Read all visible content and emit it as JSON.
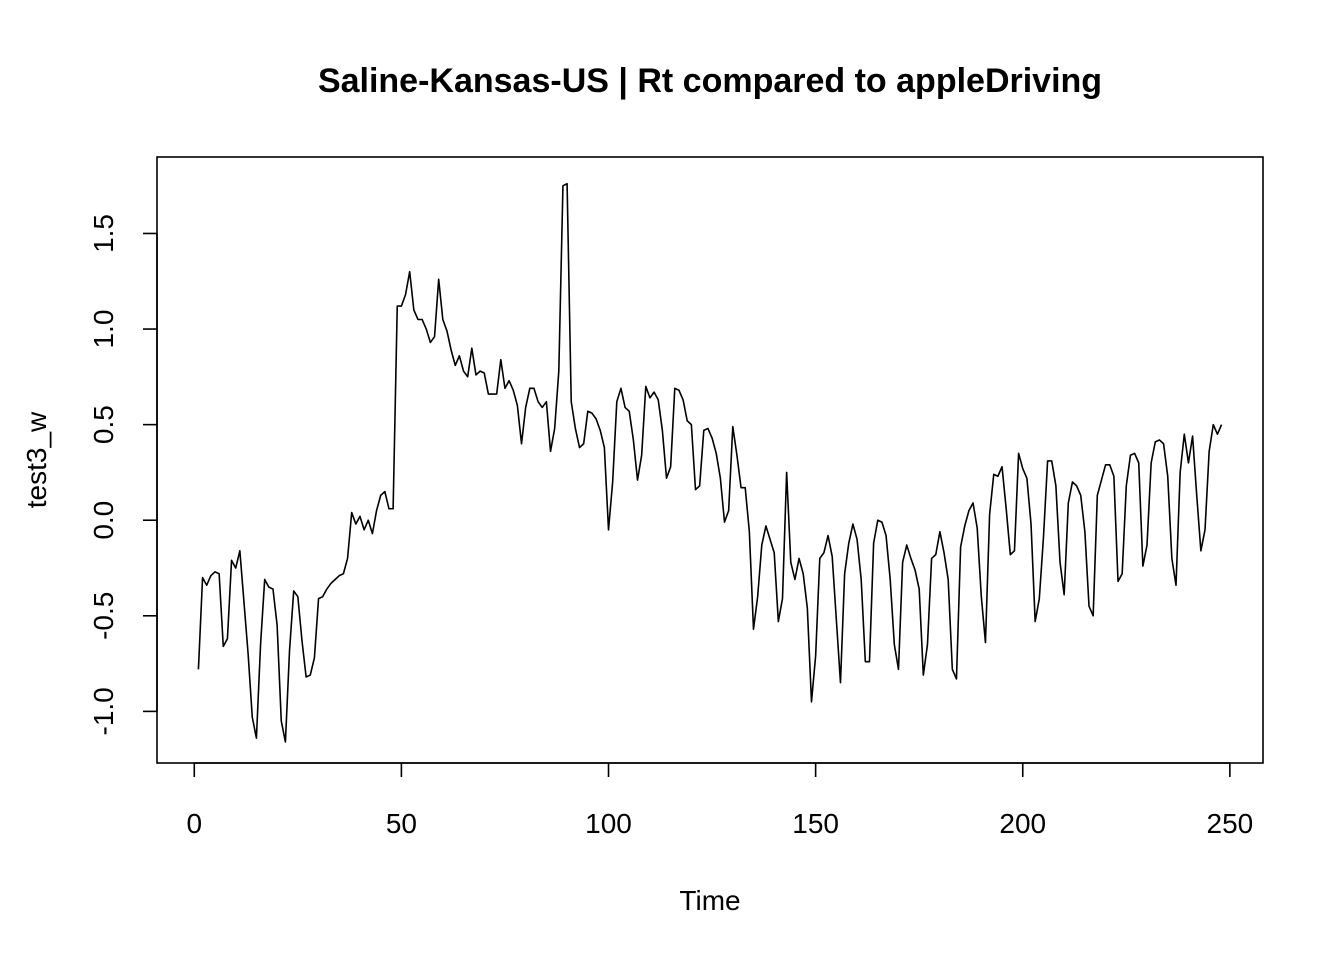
{
  "chart_data": {
    "type": "line",
    "title": "Saline-Kansas-US | Rt compared to appleDriving",
    "xlabel": "Time",
    "ylabel": "test3_w",
    "xlim": [
      -9,
      258
    ],
    "ylim": [
      -1.27,
      1.9
    ],
    "x_ticks": [
      0,
      50,
      100,
      150,
      200,
      250
    ],
    "x_tick_labels": [
      "0",
      "50",
      "100",
      "150",
      "200",
      "250"
    ],
    "y_ticks": [
      -1.0,
      -0.5,
      0.0,
      0.5,
      1.0,
      1.5
    ],
    "y_tick_labels": [
      "-1.0",
      "-0.5",
      "0.0",
      "0.5",
      "1.0",
      "1.5"
    ],
    "grid": false,
    "legend": "none",
    "line_color": "#000000",
    "series": [
      {
        "x": [
          1,
          2,
          3,
          4,
          5,
          6,
          7,
          8,
          9,
          10,
          11,
          12,
          13,
          14,
          15,
          16,
          17,
          18,
          19,
          20,
          21,
          22,
          23,
          24,
          25,
          26,
          27,
          28,
          29,
          30,
          31,
          32,
          33,
          34,
          35,
          36,
          37,
          38,
          39,
          40,
          41,
          42,
          43,
          44,
          45,
          46,
          47,
          48,
          49,
          50,
          51,
          52,
          53,
          54,
          55,
          56,
          57,
          58,
          59,
          60,
          61,
          62,
          63,
          64,
          65,
          66,
          67,
          68,
          69,
          70,
          71,
          72,
          73,
          74,
          75,
          76,
          77,
          78,
          79,
          80,
          81,
          82,
          83,
          84,
          85,
          86,
          87,
          88,
          89,
          90,
          91,
          92,
          93,
          94,
          95,
          96,
          97,
          98,
          99,
          100,
          101,
          102,
          103,
          104,
          105,
          106,
          107,
          108,
          109,
          110,
          111,
          112,
          113,
          114,
          115,
          116,
          117,
          118,
          119,
          120,
          121,
          122,
          123,
          124,
          125,
          126,
          127,
          128,
          129,
          130,
          131,
          132,
          133,
          134,
          135,
          136,
          137,
          138,
          139,
          140,
          141,
          142,
          143,
          144,
          145,
          146,
          147,
          148,
          149,
          150,
          151,
          152,
          153,
          154,
          155,
          156,
          157,
          158,
          159,
          160,
          161,
          162,
          163,
          164,
          165,
          166,
          167,
          168,
          169,
          170,
          171,
          172,
          173,
          174,
          175,
          176,
          177,
          178,
          179,
          180,
          181,
          182,
          183,
          184,
          185,
          186,
          187,
          188,
          189,
          190,
          191,
          192,
          193,
          194,
          195,
          196,
          197,
          198,
          199,
          200,
          201,
          202,
          203,
          204,
          205,
          206,
          207,
          208,
          209,
          210,
          211,
          212,
          213,
          214,
          215,
          216,
          217,
          218,
          219,
          220,
          221,
          222,
          223,
          224,
          225,
          226,
          227,
          228,
          229,
          230,
          231,
          232,
          233,
          234,
          235,
          236,
          237,
          238,
          239,
          240,
          241,
          242,
          243,
          244,
          245,
          246,
          247,
          248
        ],
        "values": [
          -0.78,
          -0.3,
          -0.34,
          -0.29,
          -0.27,
          -0.28,
          -0.66,
          -0.62,
          -0.21,
          -0.25,
          -0.16,
          -0.43,
          -0.7,
          -1.03,
          -1.14,
          -0.65,
          -0.31,
          -0.35,
          -0.36,
          -0.55,
          -1.05,
          -1.16,
          -0.68,
          -0.37,
          -0.4,
          -0.63,
          -0.82,
          -0.81,
          -0.72,
          -0.41,
          -0.4,
          -0.36,
          -0.33,
          -0.31,
          -0.29,
          -0.28,
          -0.2,
          0.04,
          -0.02,
          0.02,
          -0.05,
          0.0,
          -0.07,
          0.05,
          0.13,
          0.15,
          0.06,
          0.06,
          1.12,
          1.12,
          1.18,
          1.3,
          1.1,
          1.05,
          1.05,
          1.0,
          0.93,
          0.96,
          1.26,
          1.05,
          0.99,
          0.89,
          0.81,
          0.86,
          0.78,
          0.75,
          0.9,
          0.76,
          0.78,
          0.77,
          0.66,
          0.66,
          0.66,
          0.84,
          0.69,
          0.73,
          0.68,
          0.6,
          0.4,
          0.59,
          0.69,
          0.69,
          0.62,
          0.59,
          0.62,
          0.36,
          0.48,
          0.78,
          1.75,
          1.76,
          0.62,
          0.48,
          0.38,
          0.4,
          0.57,
          0.56,
          0.53,
          0.47,
          0.38,
          -0.05,
          0.2,
          0.62,
          0.69,
          0.59,
          0.57,
          0.42,
          0.21,
          0.34,
          0.7,
          0.64,
          0.67,
          0.63,
          0.47,
          0.22,
          0.28,
          0.69,
          0.68,
          0.63,
          0.52,
          0.5,
          0.16,
          0.18,
          0.47,
          0.48,
          0.43,
          0.35,
          0.22,
          -0.01,
          0.05,
          0.49,
          0.34,
          0.17,
          0.17,
          -0.06,
          -0.57,
          -0.4,
          -0.13,
          -0.03,
          -0.1,
          -0.17,
          -0.53,
          -0.41,
          0.25,
          -0.22,
          -0.31,
          -0.2,
          -0.28,
          -0.46,
          -0.95,
          -0.71,
          -0.2,
          -0.17,
          -0.08,
          -0.19,
          -0.52,
          -0.85,
          -0.28,
          -0.12,
          -0.02,
          -0.1,
          -0.31,
          -0.74,
          -0.74,
          -0.12,
          0.0,
          -0.01,
          -0.08,
          -0.31,
          -0.65,
          -0.78,
          -0.22,
          -0.13,
          -0.2,
          -0.26,
          -0.36,
          -0.81,
          -0.65,
          -0.2,
          -0.18,
          -0.06,
          -0.17,
          -0.31,
          -0.78,
          -0.83,
          -0.14,
          -0.03,
          0.05,
          0.09,
          -0.04,
          -0.4,
          -0.64,
          0.03,
          0.24,
          0.23,
          0.28,
          0.06,
          -0.18,
          -0.16,
          0.35,
          0.27,
          0.22,
          -0.02,
          -0.53,
          -0.41,
          -0.09,
          0.31,
          0.31,
          0.18,
          -0.22,
          -0.39,
          0.09,
          0.2,
          0.18,
          0.13,
          -0.06,
          -0.45,
          -0.5,
          0.13,
          0.21,
          0.29,
          0.29,
          0.23,
          -0.32,
          -0.28,
          0.18,
          0.34,
          0.35,
          0.3,
          -0.24,
          -0.13,
          0.3,
          0.41,
          0.42,
          0.4,
          0.23,
          -0.2,
          -0.34,
          0.25,
          0.45,
          0.3,
          0.44,
          0.13,
          -0.16,
          -0.05,
          0.36,
          0.5,
          0.45,
          0.5
        ]
      }
    ]
  }
}
